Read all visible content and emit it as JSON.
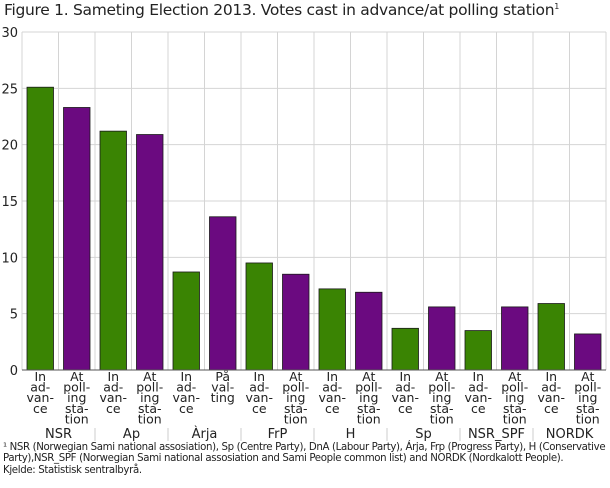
{
  "chart_data": {
    "type": "bar",
    "title": "Figure 1. Sameting Election 2013. Votes cast in advance/at polling station",
    "title_sup": "1",
    "ylim": [
      0,
      30
    ],
    "yticks": [
      0,
      5,
      10,
      15,
      20,
      25,
      30
    ],
    "grid": true,
    "groups": [
      "NSR",
      "Ap",
      "Àrja",
      "FrP",
      "H",
      "Sp",
      "NSR_SPF",
      "NORDK"
    ],
    "bars": [
      {
        "group": "NSR",
        "label": "In ad- van- ce",
        "value": 25.1,
        "kind": "advance"
      },
      {
        "group": "NSR",
        "label": "At poll- ing sta- tion",
        "value": 23.3,
        "kind": "polling"
      },
      {
        "group": "Ap",
        "label": "In ad- van- ce",
        "value": 21.2,
        "kind": "advance"
      },
      {
        "group": "Ap",
        "label": "At poll- ing sta- tion",
        "value": 20.9,
        "kind": "polling"
      },
      {
        "group": "Àrja",
        "label": "In ad- van- ce",
        "value": 8.7,
        "kind": "advance"
      },
      {
        "group": "Àrja",
        "label": "På val- ting",
        "value": 13.6,
        "kind": "polling"
      },
      {
        "group": "FrP",
        "label": "In ad- van- ce",
        "value": 9.5,
        "kind": "advance"
      },
      {
        "group": "FrP",
        "label": "At poll- ing sta- tion",
        "value": 8.5,
        "kind": "polling"
      },
      {
        "group": "H",
        "label": "In ad- van- ce",
        "value": 7.2,
        "kind": "advance"
      },
      {
        "group": "H",
        "label": "At poll- ing sta- tion",
        "value": 6.9,
        "kind": "polling"
      },
      {
        "group": "Sp",
        "label": "In ad- van- ce",
        "value": 3.7,
        "kind": "advance"
      },
      {
        "group": "Sp",
        "label": "At poll- ing sta- tion",
        "value": 5.6,
        "kind": "polling"
      },
      {
        "group": "NSR_SPF",
        "label": "In ad- van- ce",
        "value": 3.5,
        "kind": "advance"
      },
      {
        "group": "NSR_SPF",
        "label": "At poll- ing sta- tion",
        "value": 5.6,
        "kind": "polling"
      },
      {
        "group": "NORDK",
        "label": "In ad- van- ce",
        "value": 5.9,
        "kind": "advance"
      },
      {
        "group": "NORDK",
        "label": "At poll- ing sta- tion",
        "value": 3.2,
        "kind": "polling"
      }
    ],
    "colors": {
      "advance": "#3a8403",
      "polling": "#6b0a80"
    }
  },
  "notes": {
    "footnote": "¹ NSR (Norwegian Sami national assosiation), Sp (Centre Party), DnA (Labour Party), Árja, Frp (Progress Party), H (Conservative Party),NSR_SPF (Norwegian Sami national assosiation and Sami People common list) and NORDK (Nordkalott People).",
    "source": "Kjelde: Statistisk sentralbyrå."
  }
}
